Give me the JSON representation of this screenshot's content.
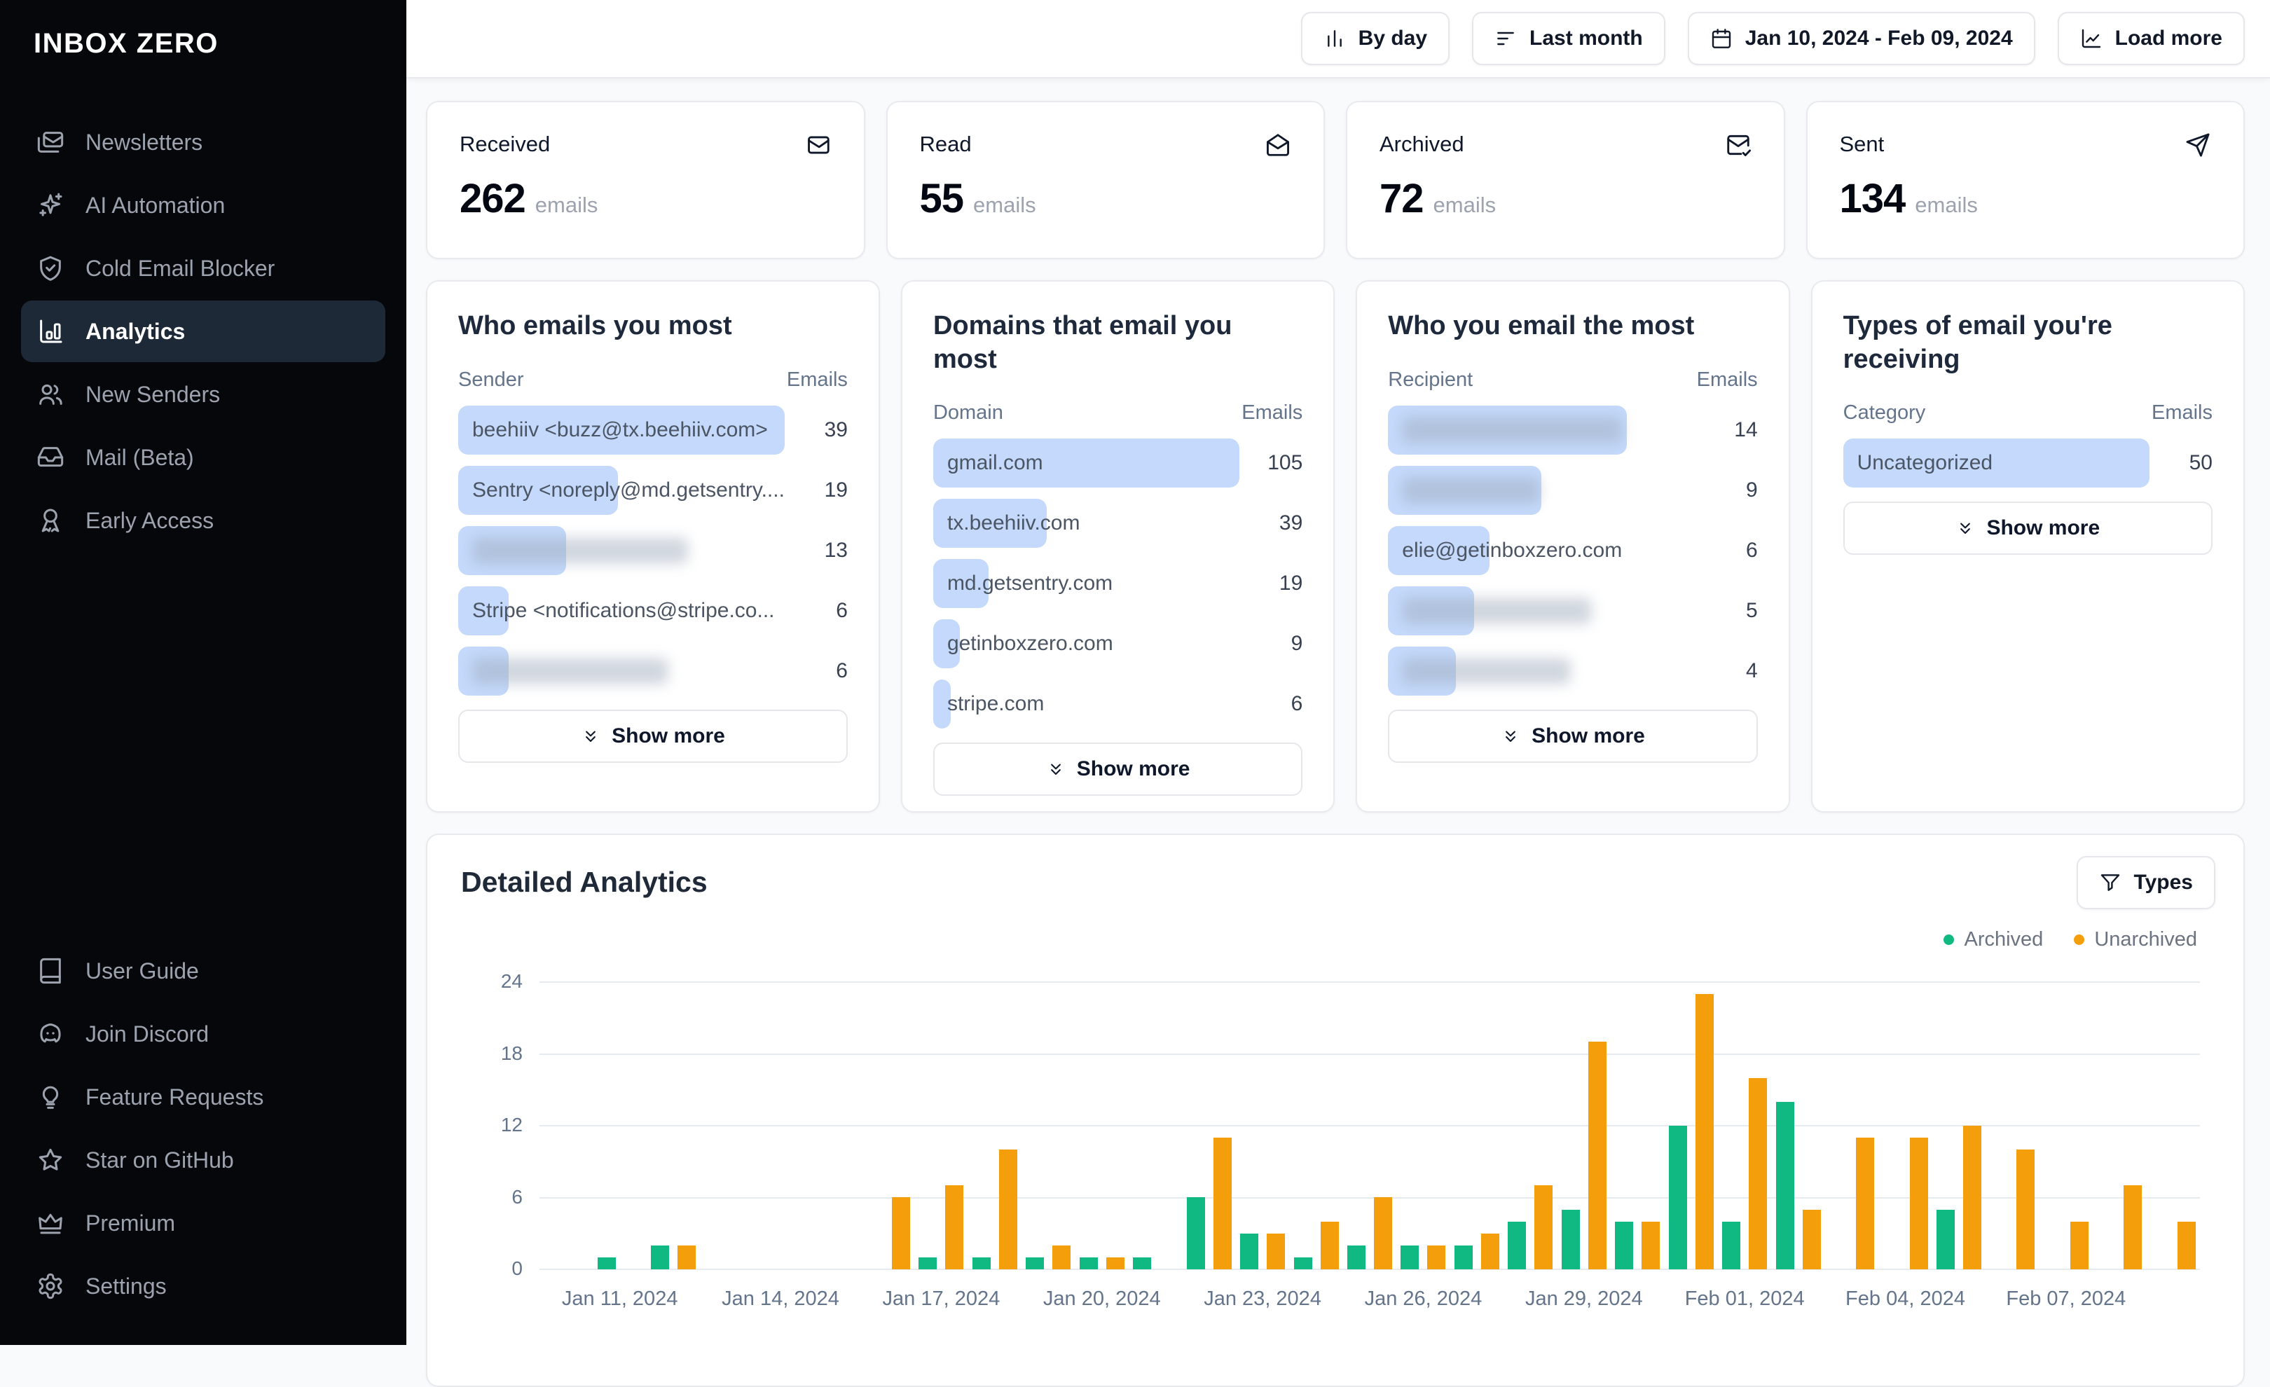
{
  "sidebar": {
    "logo": "INBOX ZERO",
    "nav": [
      {
        "icon": "mails-icon",
        "label": "Newsletters",
        "active": false
      },
      {
        "icon": "sparkles-icon",
        "label": "AI Automation",
        "active": false
      },
      {
        "icon": "shield-check-icon",
        "label": "Cold Email Blocker",
        "active": false
      },
      {
        "icon": "bar-chart-icon",
        "label": "Analytics",
        "active": true
      },
      {
        "icon": "users-icon",
        "label": "New Senders",
        "active": false
      },
      {
        "icon": "inbox-icon",
        "label": "Mail (Beta)",
        "active": false
      },
      {
        "icon": "ribbon-icon",
        "label": "Early Access",
        "active": false
      }
    ],
    "footer_nav": [
      {
        "icon": "book-icon",
        "label": "User Guide"
      },
      {
        "icon": "discord-icon",
        "label": "Join Discord"
      },
      {
        "icon": "lightbulb-icon",
        "label": "Feature Requests"
      },
      {
        "icon": "star-icon",
        "label": "Star on GitHub"
      },
      {
        "icon": "crown-icon",
        "label": "Premium"
      },
      {
        "icon": "gear-icon",
        "label": "Settings"
      }
    ]
  },
  "topbar": {
    "buttons": [
      {
        "icon": "bars-vertical-icon",
        "label": "By day"
      },
      {
        "icon": "filter-lines-icon",
        "label": "Last month"
      },
      {
        "icon": "calendar-icon",
        "label": "Jan 10, 2024 - Feb 09, 2024"
      },
      {
        "icon": "chart-line-icon",
        "label": "Load more"
      }
    ]
  },
  "stats": [
    {
      "label": "Received",
      "value": "262",
      "unit": "emails",
      "icon": "mail-received-icon"
    },
    {
      "label": "Read",
      "value": "55",
      "unit": "emails",
      "icon": "mail-open-icon"
    },
    {
      "label": "Archived",
      "value": "72",
      "unit": "emails",
      "icon": "mail-check-icon"
    },
    {
      "label": "Sent",
      "value": "134",
      "unit": "emails",
      "icon": "send-icon"
    }
  ],
  "lists": [
    {
      "title": "Who emails you most",
      "col_label": "Sender",
      "col_value": "Emails",
      "show_more": "Show more",
      "rows": [
        {
          "label": "beehiiv <buzz@tx.beehiiv.com>",
          "value": "39",
          "bar": 1.0,
          "redacted": false,
          "redact_w": 0
        },
        {
          "label": "Sentry <noreply@md.getsentry....",
          "value": "19",
          "bar": 0.49,
          "redacted": false,
          "redact_w": 0
        },
        {
          "label": "",
          "value": "13",
          "bar": 0.33,
          "redacted": true,
          "redact_w": 0.66
        },
        {
          "label": "Stripe <notifications@stripe.co...",
          "value": "6",
          "bar": 0.155,
          "redacted": false,
          "redact_w": 0
        },
        {
          "label": "",
          "value": "6",
          "bar": 0.155,
          "redacted": true,
          "redact_w": 0.6
        }
      ]
    },
    {
      "title": "Domains that email you most",
      "col_label": "Domain",
      "col_value": "Emails",
      "show_more": "Show more",
      "rows": [
        {
          "label": "gmail.com",
          "value": "105",
          "bar": 1.0,
          "redacted": false,
          "redact_w": 0
        },
        {
          "label": "tx.beehiiv.com",
          "value": "39",
          "bar": 0.37,
          "redacted": false,
          "redact_w": 0
        },
        {
          "label": "md.getsentry.com",
          "value": "19",
          "bar": 0.18,
          "redacted": false,
          "redact_w": 0
        },
        {
          "label": "getinboxzero.com",
          "value": "9",
          "bar": 0.086,
          "redacted": false,
          "redact_w": 0
        },
        {
          "label": "stripe.com",
          "value": "6",
          "bar": 0.057,
          "redacted": false,
          "redact_w": 0
        }
      ]
    },
    {
      "title": "Who you email the most",
      "col_label": "Recipient",
      "col_value": "Emails",
      "show_more": "Show more",
      "rows": [
        {
          "label": "",
          "value": "14",
          "bar": 0.78,
          "redacted": true,
          "redact_w": 0.72
        },
        {
          "label": "",
          "value": "9",
          "bar": 0.5,
          "redacted": true,
          "redact_w": 0.45
        },
        {
          "label": "elie@getinboxzero.com",
          "value": "6",
          "bar": 0.33,
          "redacted": false,
          "redact_w": 0
        },
        {
          "label": "",
          "value": "5",
          "bar": 0.28,
          "redacted": true,
          "redact_w": 0.62
        },
        {
          "label": "",
          "value": "4",
          "bar": 0.22,
          "redacted": true,
          "redact_w": 0.55
        }
      ]
    },
    {
      "title": "Types of email you're receiving",
      "col_label": "Category",
      "col_value": "Emails",
      "show_more": "Show more",
      "rows": [
        {
          "label": "Uncategorized",
          "value": "50",
          "bar": 1.0,
          "redacted": false,
          "redact_w": 0
        }
      ]
    }
  ],
  "detailed": {
    "title": "Detailed Analytics",
    "types_label": "Types"
  },
  "chart_data": {
    "type": "bar",
    "title": "Detailed Analytics",
    "x": [
      "Jan 10, 2024",
      "Jan 11, 2024",
      "Jan 12, 2024",
      "Jan 13, 2024",
      "Jan 14, 2024",
      "Jan 15, 2024",
      "Jan 16, 2024",
      "Jan 17, 2024",
      "Jan 18, 2024",
      "Jan 19, 2024",
      "Jan 20, 2024",
      "Jan 21, 2024",
      "Jan 22, 2024",
      "Jan 23, 2024",
      "Jan 24, 2024",
      "Jan 25, 2024",
      "Jan 26, 2024",
      "Jan 27, 2024",
      "Jan 28, 2024",
      "Jan 29, 2024",
      "Jan 30, 2024",
      "Jan 31, 2024",
      "Feb 01, 2024",
      "Feb 02, 2024",
      "Feb 03, 2024",
      "Feb 04, 2024",
      "Feb 05, 2024",
      "Feb 06, 2024",
      "Feb 07, 2024",
      "Feb 08, 2024",
      "Feb 09, 2024"
    ],
    "series": [
      {
        "name": "Archived",
        "color": "#10b981",
        "values": [
          0,
          1,
          2,
          0,
          0,
          0,
          0,
          1,
          1,
          1,
          1,
          1,
          6,
          3,
          1,
          2,
          2,
          2,
          4,
          5,
          4,
          12,
          4,
          14,
          0,
          0,
          5,
          0,
          0,
          0,
          0
        ]
      },
      {
        "name": "Unarchived",
        "color": "#f59e0b",
        "values": [
          0,
          0,
          2,
          0,
          0,
          0,
          6,
          7,
          10,
          2,
          1,
          0,
          11,
          3,
          4,
          6,
          2,
          3,
          7,
          19,
          4,
          23,
          16,
          5,
          11,
          11,
          12,
          10,
          4,
          7,
          4
        ]
      }
    ],
    "ylim": [
      0,
      24
    ],
    "yticks": [
      0,
      6,
      12,
      18,
      24
    ],
    "xticks": [
      "Jan 11, 2024",
      "Jan 14, 2024",
      "Jan 17, 2024",
      "Jan 20, 2024",
      "Jan 23, 2024",
      "Jan 26, 2024",
      "Jan 29, 2024",
      "Feb 01, 2024",
      "Feb 04, 2024",
      "Feb 07, 2024"
    ],
    "grid": true,
    "legend_position": "top-right"
  },
  "colors": {
    "list_bar_blue": "#c4d9fb",
    "archived_green": "#10b981",
    "unarchived_orange": "#f59e0b",
    "sidebar_bg": "#06070b",
    "active_item_bg": "#1e2938"
  }
}
